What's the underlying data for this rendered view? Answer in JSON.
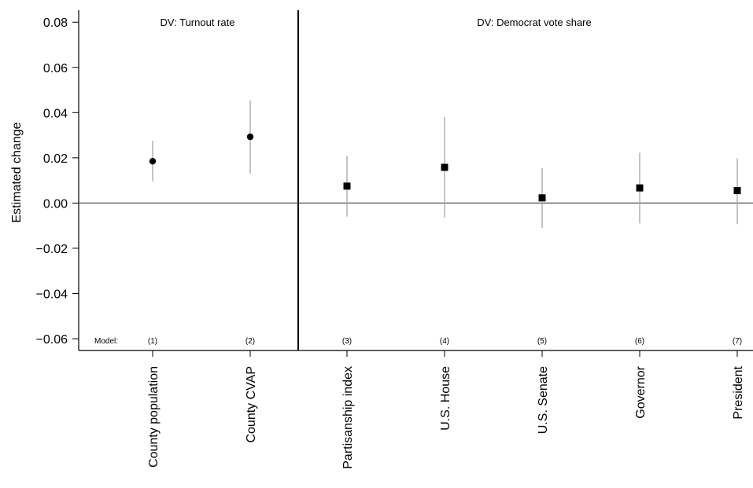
{
  "chart_data": {
    "type": "scatter",
    "ylabel": "Estimated change",
    "ylim": [
      -0.065,
      0.087
    ],
    "yticks": [
      "0.08",
      "0.06",
      "0.04",
      "0.02",
      "0.00",
      "−0.02",
      "−0.04",
      "−0.06"
    ],
    "yticks_values": [
      0.08,
      0.06,
      0.04,
      0.02,
      0.0,
      -0.02,
      -0.04,
      -0.06
    ],
    "panels": [
      {
        "title": "DV: Turnout rate"
      },
      {
        "title": "DV: Democrat vote share"
      }
    ],
    "model_label": "Model:",
    "points": [
      {
        "category": "County population",
        "model": "(1)",
        "panel": 0,
        "marker": "circle",
        "estimate": 0.0185,
        "ci_low": 0.0095,
        "ci_high": 0.0275
      },
      {
        "category": "County CVAP",
        "model": "(2)",
        "panel": 0,
        "marker": "circle",
        "estimate": 0.0293,
        "ci_low": 0.0131,
        "ci_high": 0.0454
      },
      {
        "category": "Partisanship index",
        "model": "(3)",
        "panel": 1,
        "marker": "square",
        "estimate": 0.0075,
        "ci_low": -0.006,
        "ci_high": 0.0208
      },
      {
        "category": "U.S. House",
        "model": "(4)",
        "panel": 1,
        "marker": "square",
        "estimate": 0.0158,
        "ci_low": -0.0065,
        "ci_high": 0.0381
      },
      {
        "category": "U.S. Senate",
        "model": "(5)",
        "panel": 1,
        "marker": "square",
        "estimate": 0.0023,
        "ci_low": -0.011,
        "ci_high": 0.0155
      },
      {
        "category": "Governor",
        "model": "(6)",
        "panel": 1,
        "marker": "square",
        "estimate": 0.0067,
        "ci_low": -0.009,
        "ci_high": 0.0222
      },
      {
        "category": "President",
        "model": "(7)",
        "panel": 1,
        "marker": "square",
        "estimate": 0.0055,
        "ci_low": -0.0093,
        "ci_high": 0.0198
      }
    ],
    "zero_line": true,
    "grid": false,
    "colors": {
      "point": "#000000",
      "interval": "#aaaaaa",
      "zero_line": "#555555",
      "axis": "#000000"
    }
  }
}
